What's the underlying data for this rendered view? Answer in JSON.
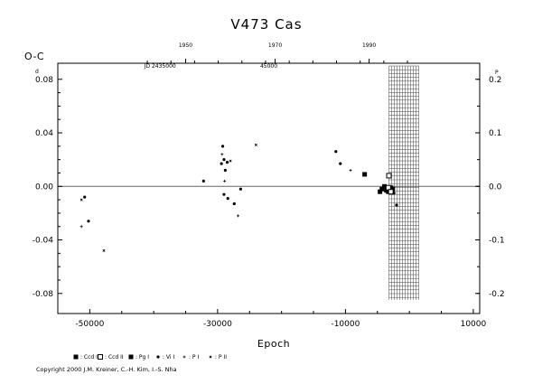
{
  "chart_data": {
    "type": "scatter",
    "title": "V473 Cas",
    "ylabel": "O-C",
    "xlabel": "Epoch",
    "xlim": [
      -55000,
      11000
    ],
    "ylim": [
      -0.095,
      0.092
    ],
    "y_ticks": [
      "0.08",
      "0.04",
      "0.00",
      "-0.04",
      "-0.08"
    ],
    "y_ticks_values": [
      0.08,
      0.04,
      0.0,
      -0.04,
      -0.08
    ],
    "y_top_label": "d",
    "x_ticks": [
      "-50000",
      "-30000",
      "-10000",
      "10000"
    ],
    "x_ticks_values": [
      -50000,
      -30000,
      -10000,
      10000
    ],
    "right_axis": {
      "ticks": [
        "0.2",
        "0.1",
        "0.0",
        "-0.1",
        "-0.2"
      ],
      "values": [
        0.2,
        0.1,
        0.0,
        -0.1,
        -0.2
      ],
      "top_label": "P"
    },
    "top_axis": {
      "year_ticks": [
        "1950",
        "1970",
        "1990"
      ],
      "year_epochs": [
        -35000,
        -21000,
        -6300
      ],
      "jd_labels": [
        "JD 2435000",
        "45000"
      ],
      "jd_epochs": [
        -39000,
        -22000
      ]
    },
    "hatched_region": {
      "from": -3200,
      "to": 1500
    },
    "legend": [
      {
        "symbol": "■",
        "label": ": Ccd I"
      },
      {
        "symbol": "□",
        "label": ": Ccd II"
      },
      {
        "symbol": "■",
        "label": ": Pg I"
      },
      {
        "symbol": "●",
        "label": ": Vi I"
      },
      {
        "symbol": "+",
        "label": ": P I"
      },
      {
        "symbol": "×",
        "label": ": P II"
      }
    ],
    "series": [
      {
        "marker": "filled-square",
        "points": [
          [
            -7000,
            0.009
          ],
          [
            -4600,
            -0.004
          ],
          [
            -4300,
            -0.002
          ],
          [
            -3900,
            0.0
          ],
          [
            -3600,
            -0.003
          ],
          [
            -3300,
            -0.004
          ],
          [
            -2900,
            -0.001
          ],
          [
            -2600,
            -0.002
          ]
        ]
      },
      {
        "marker": "open-square",
        "points": [
          [
            -3200,
            0.008
          ],
          [
            -3300,
            -0.001
          ],
          [
            -2900,
            -0.004
          ]
        ]
      },
      {
        "marker": "dot",
        "points": [
          [
            -50800,
            -0.008
          ],
          [
            -50200,
            -0.026
          ],
          [
            -32200,
            0.004
          ],
          [
            -29400,
            0.017
          ],
          [
            -29200,
            0.03
          ],
          [
            -29000,
            0.02
          ],
          [
            -28800,
            0.012
          ],
          [
            -28500,
            0.018
          ],
          [
            -29000,
            -0.006
          ],
          [
            -28400,
            -0.009
          ],
          [
            -27400,
            -0.013
          ],
          [
            -26400,
            -0.002
          ],
          [
            -11500,
            0.026
          ],
          [
            -10800,
            0.017
          ],
          [
            -2400,
            -0.005
          ],
          [
            -2000,
            -0.014
          ]
        ]
      },
      {
        "marker": "plus",
        "points": [
          [
            -51300,
            -0.03
          ],
          [
            -29300,
            0.024
          ],
          [
            -28900,
            0.004
          ],
          [
            -26800,
            -0.022
          ],
          [
            -9200,
            0.012
          ]
        ]
      },
      {
        "marker": "cross",
        "points": [
          [
            -51300,
            -0.01
          ],
          [
            -47800,
            -0.048
          ],
          [
            -24000,
            0.031
          ],
          [
            -28000,
            0.019
          ]
        ]
      }
    ]
  },
  "copyright": "Copyright 2000 J.M. Kreiner, C.-H. Kim, I.-S. Nha"
}
